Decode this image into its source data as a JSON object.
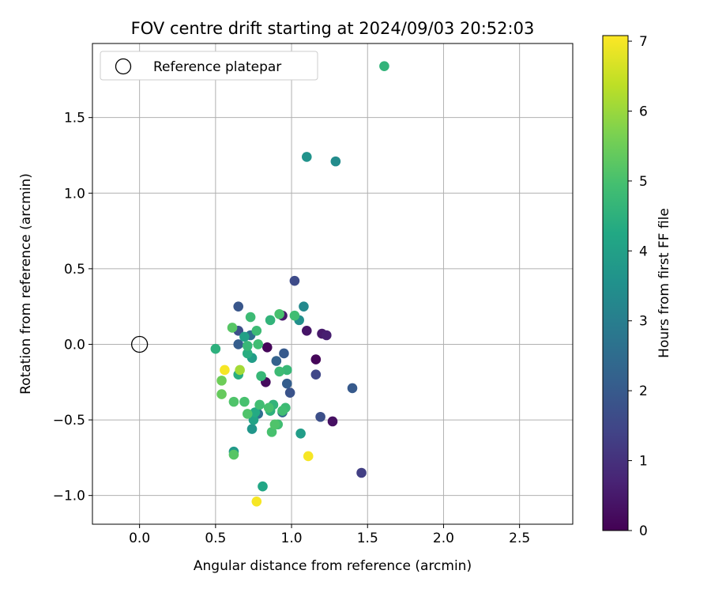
{
  "chart_data": {
    "type": "scatter",
    "title": "FOV centre drift starting at 2024/09/03 20:52:03",
    "xlabel": "Angular distance from reference (arcmin)",
    "ylabel": "Rotation from reference (arcmin)",
    "xlim": [
      -0.31,
      2.85
    ],
    "ylim": [
      -1.19,
      1.99
    ],
    "xticks": [
      0.0,
      0.5,
      1.0,
      1.5,
      2.0,
      2.5
    ],
    "xtick_labels": [
      "0.0",
      "0.5",
      "1.0",
      "1.5",
      "2.0",
      "2.5"
    ],
    "yticks": [
      -1.0,
      -0.5,
      0.0,
      0.5,
      1.0,
      1.5
    ],
    "ytick_labels": [
      "−1.0",
      "−0.5",
      "0.0",
      "0.5",
      "1.0",
      "1.5"
    ],
    "grid": true,
    "legend": {
      "position": "top-left",
      "entries": [
        "Reference platepar"
      ]
    },
    "reference_point": {
      "x": 0.0,
      "y": 0.0,
      "marker": "open-circle"
    },
    "colorbar": {
      "label": "Hours from first FF file",
      "range": [
        0,
        7.08
      ],
      "ticks": [
        0,
        1,
        2,
        3,
        4,
        5,
        6,
        7
      ],
      "tick_labels": [
        "0",
        "1",
        "2",
        "3",
        "4",
        "5",
        "6",
        "7"
      ],
      "colormap": "viridis"
    },
    "points": [
      {
        "x": 0.84,
        "y": -0.02,
        "t": 0.1
      },
      {
        "x": 0.83,
        "y": -0.25,
        "t": 0.2
      },
      {
        "x": 1.16,
        "y": -0.1,
        "t": 0.1
      },
      {
        "x": 1.27,
        "y": -0.51,
        "t": 0.3
      },
      {
        "x": 1.23,
        "y": 0.06,
        "t": 0.6
      },
      {
        "x": 1.2,
        "y": 0.07,
        "t": 0.5
      },
      {
        "x": 1.1,
        "y": 0.09,
        "t": 0.4
      },
      {
        "x": 0.94,
        "y": 0.19,
        "t": 0.5
      },
      {
        "x": 1.46,
        "y": -0.85,
        "t": 1.3
      },
      {
        "x": 1.02,
        "y": 0.42,
        "t": 1.6
      },
      {
        "x": 1.19,
        "y": -0.48,
        "t": 1.7
      },
      {
        "x": 1.16,
        "y": -0.2,
        "t": 1.5
      },
      {
        "x": 1.4,
        "y": -0.29,
        "t": 2.0
      },
      {
        "x": 0.99,
        "y": -0.32,
        "t": 1.8
      },
      {
        "x": 0.97,
        "y": -0.26,
        "t": 2.1
      },
      {
        "x": 0.9,
        "y": -0.11,
        "t": 2.2
      },
      {
        "x": 0.95,
        "y": -0.06,
        "t": 2.0
      },
      {
        "x": 0.65,
        "y": 0.25,
        "t": 1.9
      },
      {
        "x": 0.65,
        "y": 0.09,
        "t": 1.7
      },
      {
        "x": 0.65,
        "y": 0.0,
        "t": 2.1
      },
      {
        "x": 0.73,
        "y": 0.06,
        "t": 2.5
      },
      {
        "x": 0.94,
        "y": -0.45,
        "t": 2.4
      },
      {
        "x": 0.78,
        "y": -0.46,
        "t": 2.6
      },
      {
        "x": 1.08,
        "y": 0.25,
        "t": 3.3
      },
      {
        "x": 1.05,
        "y": 0.16,
        "t": 3.5
      },
      {
        "x": 1.1,
        "y": 1.24,
        "t": 3.6
      },
      {
        "x": 1.29,
        "y": 1.21,
        "t": 3.4
      },
      {
        "x": 1.61,
        "y": 1.84,
        "t": 4.6
      },
      {
        "x": 1.06,
        "y": -0.59,
        "t": 3.9
      },
      {
        "x": 0.81,
        "y": -0.94,
        "t": 4.2
      },
      {
        "x": 0.62,
        "y": -0.71,
        "t": 3.8
      },
      {
        "x": 0.74,
        "y": -0.56,
        "t": 3.7
      },
      {
        "x": 0.75,
        "y": -0.5,
        "t": 4.1
      },
      {
        "x": 0.76,
        "y": -0.45,
        "t": 4.3
      },
      {
        "x": 0.74,
        "y": -0.09,
        "t": 3.9
      },
      {
        "x": 0.69,
        "y": 0.05,
        "t": 4.0
      },
      {
        "x": 0.86,
        "y": -0.44,
        "t": 4.5
      },
      {
        "x": 0.88,
        "y": -0.4,
        "t": 4.6
      },
      {
        "x": 0.65,
        "y": -0.2,
        "t": 4.4
      },
      {
        "x": 0.5,
        "y": -0.03,
        "t": 4.5
      },
      {
        "x": 0.71,
        "y": -0.06,
        "t": 4.4
      },
      {
        "x": 0.71,
        "y": -0.01,
        "t": 4.7
      },
      {
        "x": 0.77,
        "y": 0.09,
        "t": 4.8
      },
      {
        "x": 0.78,
        "y": 0.0,
        "t": 4.9
      },
      {
        "x": 0.73,
        "y": 0.18,
        "t": 4.8
      },
      {
        "x": 0.86,
        "y": 0.16,
        "t": 4.6
      },
      {
        "x": 0.92,
        "y": 0.2,
        "t": 5.0
      },
      {
        "x": 1.02,
        "y": 0.19,
        "t": 4.9
      },
      {
        "x": 0.97,
        "y": -0.17,
        "t": 4.7
      },
      {
        "x": 0.92,
        "y": -0.18,
        "t": 4.8
      },
      {
        "x": 0.8,
        "y": -0.21,
        "t": 4.7
      },
      {
        "x": 0.96,
        "y": -0.42,
        "t": 4.8
      },
      {
        "x": 0.94,
        "y": -0.44,
        "t": 4.9
      },
      {
        "x": 0.85,
        "y": -0.42,
        "t": 5.0
      },
      {
        "x": 0.79,
        "y": -0.4,
        "t": 4.9
      },
      {
        "x": 0.69,
        "y": -0.38,
        "t": 5.0
      },
      {
        "x": 0.71,
        "y": -0.46,
        "t": 5.1
      },
      {
        "x": 0.91,
        "y": -0.53,
        "t": 4.9
      },
      {
        "x": 0.87,
        "y": -0.58,
        "t": 5.0
      },
      {
        "x": 0.89,
        "y": -0.53,
        "t": 5.1
      },
      {
        "x": 0.61,
        "y": 0.11,
        "t": 5.2
      },
      {
        "x": 0.62,
        "y": -0.38,
        "t": 5.1
      },
      {
        "x": 0.54,
        "y": -0.33,
        "t": 5.4
      },
      {
        "x": 0.54,
        "y": -0.24,
        "t": 5.5
      },
      {
        "x": 0.62,
        "y": -0.73,
        "t": 5.2
      },
      {
        "x": 0.66,
        "y": -0.17,
        "t": 6.1
      },
      {
        "x": 0.56,
        "y": -0.17,
        "t": 7.0
      },
      {
        "x": 1.11,
        "y": -0.74,
        "t": 7.0
      },
      {
        "x": 0.77,
        "y": -1.04,
        "t": 7.0
      }
    ]
  }
}
